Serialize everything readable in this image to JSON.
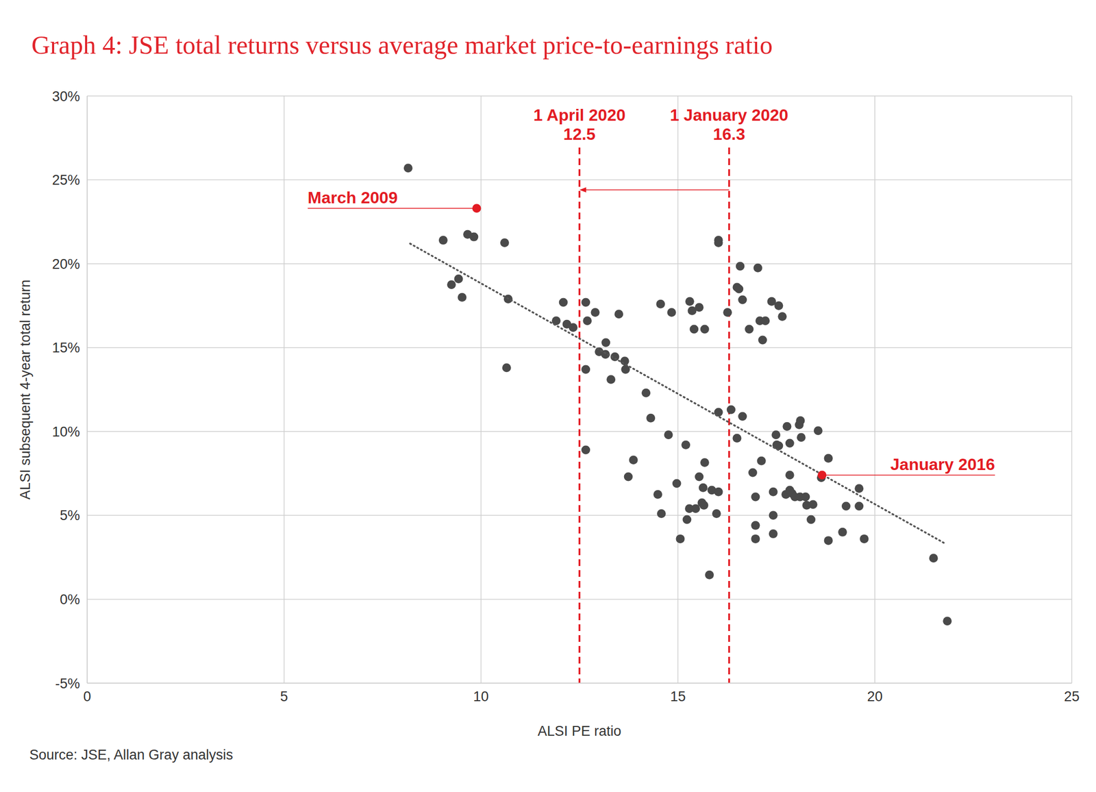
{
  "chart_data": {
    "type": "scatter",
    "title": "Graph 4: JSE total returns versus average market price-to-earnings ratio",
    "x_label": "ALSI PE ratio",
    "y_label": "ALSI subsequent 4-year total return",
    "source": "Source: JSE, Allan Gray analysis",
    "xlim": [
      0,
      25
    ],
    "xticks": [
      0,
      5,
      10,
      15,
      20,
      25
    ],
    "ylim": [
      -5,
      30
    ],
    "yticks": [
      {
        "value": -5,
        "label": "-5%"
      },
      {
        "value": 0,
        "label": "0%"
      },
      {
        "value": 5,
        "label": "5%"
      },
      {
        "value": 10,
        "label": "10%"
      },
      {
        "value": 15,
        "label": "15%"
      },
      {
        "value": 20,
        "label": "20%"
      },
      {
        "value": 25,
        "label": "25%"
      },
      {
        "value": 30,
        "label": "30%"
      }
    ],
    "grid": true,
    "series": [
      {
        "type": "scatter",
        "color": "#4a4a4a",
        "marker": "circle",
        "x": [
          8.15,
          9.04,
          9.66,
          9.82,
          9.25,
          9.43,
          9.52,
          10.6,
          10.69,
          10.65,
          11.91,
          12.09,
          12.18,
          12.34,
          12.66,
          12.7,
          12.9,
          12.66,
          12.66,
          13.0,
          13.16,
          13.17,
          13.3,
          13.4,
          13.5,
          13.65,
          13.67,
          13.74,
          13.87,
          14.19,
          14.31,
          14.49,
          14.56,
          14.58,
          14.76,
          14.84,
          14.97,
          15.06,
          15.2,
          15.23,
          15.3,
          15.36,
          15.41,
          15.29,
          15.45,
          15.54,
          15.54,
          15.61,
          15.64,
          15.68,
          15.68,
          15.66,
          15.8,
          15.86,
          15.98,
          16.03,
          16.03,
          16.03,
          16.03,
          16.26,
          16.35,
          16.5,
          16.55,
          16.5,
          16.58,
          16.64,
          16.64,
          16.81,
          16.9,
          16.97,
          16.97,
          16.97,
          17.03,
          17.08,
          17.12,
          17.15,
          17.22,
          17.38,
          17.42,
          17.42,
          17.42,
          17.49,
          17.51,
          17.56,
          17.56,
          17.65,
          17.74,
          17.77,
          17.84,
          17.84,
          17.84,
          17.9,
          17.97,
          18.08,
          18.11,
          18.13,
          18.1,
          18.24,
          18.27,
          18.38,
          18.43,
          18.56,
          18.64,
          18.82,
          18.82,
          19.18,
          19.27,
          19.6,
          19.6,
          19.73,
          21.49,
          21.84
        ],
        "values": [
          25.7,
          21.4,
          21.75,
          21.6,
          18.75,
          19.1,
          18.0,
          21.25,
          17.9,
          13.8,
          16.6,
          17.7,
          16.4,
          16.2,
          17.7,
          16.6,
          17.1,
          13.7,
          8.9,
          14.75,
          14.6,
          15.3,
          13.1,
          14.45,
          17.0,
          14.2,
          13.7,
          7.3,
          8.3,
          12.3,
          10.8,
          6.25,
          17.6,
          5.1,
          9.8,
          17.1,
          6.9,
          3.6,
          9.2,
          4.75,
          17.75,
          17.2,
          16.1,
          5.4,
          5.4,
          17.4,
          7.3,
          5.75,
          6.65,
          8.15,
          16.1,
          5.6,
          1.45,
          6.5,
          5.1,
          6.4,
          21.4,
          21.25,
          11.15,
          17.1,
          11.3,
          18.6,
          18.5,
          9.6,
          19.85,
          17.85,
          10.9,
          16.1,
          7.55,
          6.1,
          4.4,
          3.6,
          19.75,
          16.6,
          8.25,
          15.45,
          16.6,
          17.75,
          6.4,
          5.0,
          3.9,
          9.8,
          9.2,
          9.15,
          17.5,
          16.85,
          6.25,
          10.3,
          9.3,
          7.4,
          6.5,
          6.3,
          6.1,
          10.4,
          10.65,
          9.65,
          6.1,
          6.1,
          5.6,
          4.75,
          5.65,
          10.05,
          7.25,
          8.4,
          3.5,
          4.0,
          5.55,
          6.6,
          5.55,
          3.6,
          2.45,
          -1.3
        ]
      },
      {
        "type": "line",
        "color": "#555555",
        "line_style": "dotted",
        "x": [
          8.2,
          21.8
        ],
        "values": [
          21.2,
          3.3
        ]
      }
    ],
    "vlines": [
      {
        "label": "1 April 2020",
        "x": 12.5,
        "color": "#e31b23"
      },
      {
        "label": "1 January 2020",
        "x": 16.3,
        "color": "#e31b23"
      }
    ],
    "arrow": {
      "x": [
        16.3,
        12.5
      ],
      "y": 24.4,
      "color": "#e31b23"
    },
    "annotations": [
      {
        "label": "March 2009",
        "x": 9.89,
        "y": 23.3,
        "line_end": 5.6,
        "color": "#e31b23"
      },
      {
        "label": "January 2016",
        "x": 18.66,
        "y": 7.4,
        "line_end": 23.05,
        "color": "#e31b23"
      }
    ]
  }
}
